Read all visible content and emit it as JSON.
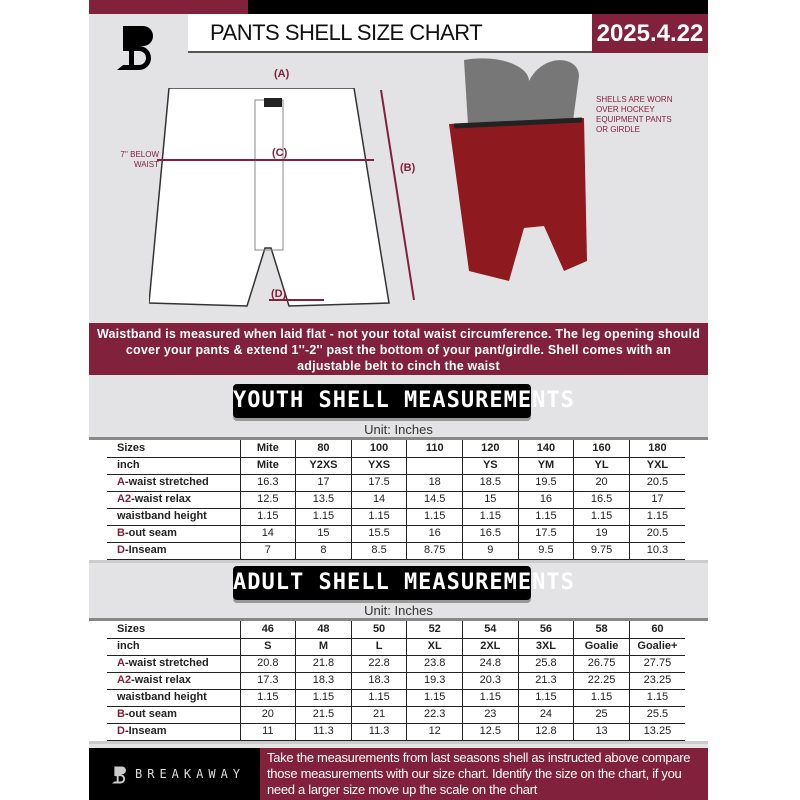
{
  "header": {
    "title": "PANTS SHELL SIZE CHART",
    "date": "2025.4.22",
    "logo": "B"
  },
  "diagram": {
    "label_a": "(A)",
    "label_b": "(B)",
    "label_c": "(C)",
    "label_d": "(D)",
    "below_waist": "7'' BELOW\nWAIST",
    "photo_note": "SHELLS ARE WORN\nOVER HOCKEY\nEQUIPMENT PANTS\nOR GIRDLE"
  },
  "banner": "Waistband is measured when laid flat - not your total waist circumference. The leg opening should cover your pants & extend 1''-2'' past the bottom of your pant/girdle. Shell comes with an adjustable belt to cinch the waist",
  "youth": {
    "title": "YOUTH SHELL MEASUREMENTS",
    "unit": "Unit: Inches",
    "rows": [
      {
        "key": "",
        "label": "Sizes",
        "values": [
          "Mite",
          "80",
          "100",
          "110",
          "120",
          "140",
          "160",
          "180"
        ]
      },
      {
        "key": "",
        "label": "inch",
        "values": [
          "Mite",
          "Y2XS",
          "YXS",
          "",
          "YS",
          "YM",
          "YL",
          "YXL"
        ]
      },
      {
        "key": "A",
        "label": "-waist stretched",
        "values": [
          "16.3",
          "17",
          "17.5",
          "18",
          "18.5",
          "19.5",
          "20",
          "20.5"
        ]
      },
      {
        "key": "A2",
        "label": "-waist relax",
        "values": [
          "12.5",
          "13.5",
          "14",
          "14.5",
          "15",
          "16",
          "16.5",
          "17"
        ]
      },
      {
        "key": "",
        "label": "waistband height",
        "values": [
          "1.15",
          "1.15",
          "1.15",
          "1.15",
          "1.15",
          "1.15",
          "1.15",
          "1.15"
        ]
      },
      {
        "key": "B",
        "label": "-out seam",
        "values": [
          "14",
          "15",
          "15.5",
          "16",
          "16.5",
          "17.5",
          "19",
          "20.5"
        ]
      },
      {
        "key": "D",
        "label": "-Inseam",
        "values": [
          "7",
          "8",
          "8.5",
          "8.75",
          "9",
          "9.5",
          "9.75",
          "10.3"
        ]
      }
    ]
  },
  "adult": {
    "title": "ADULT SHELL MEASUREMENTS",
    "unit": "Unit: Inches",
    "rows": [
      {
        "key": "",
        "label": "Sizes",
        "values": [
          "46",
          "48",
          "50",
          "52",
          "54",
          "56",
          "58",
          "60"
        ]
      },
      {
        "key": "",
        "label": "inch",
        "values": [
          "S",
          "M",
          "L",
          "XL",
          "2XL",
          "3XL",
          "Goalie",
          "Goalie+"
        ]
      },
      {
        "key": "A",
        "label": "-waist stretched",
        "values": [
          "20.8",
          "21.8",
          "22.8",
          "23.8",
          "24.8",
          "25.8",
          "26.75",
          "27.75"
        ]
      },
      {
        "key": "A2",
        "label": "-waist relax",
        "values": [
          "17.3",
          "18.3",
          "18.3",
          "19.3",
          "20.3",
          "21.3",
          "22.25",
          "23.25"
        ]
      },
      {
        "key": "",
        "label": "waistband height",
        "values": [
          "1.15",
          "1.15",
          "1.15",
          "1.15",
          "1.15",
          "1.15",
          "1.15",
          "1.15"
        ]
      },
      {
        "key": "B",
        "label": "-out seam",
        "values": [
          "20",
          "21.5",
          "21",
          "22.3",
          "23",
          "24",
          "25",
          "25.5"
        ]
      },
      {
        "key": "D",
        "label": "-Inseam",
        "values": [
          "11",
          "11.3",
          "11.3",
          "12",
          "12.5",
          "12.8",
          "13",
          "13.25"
        ]
      }
    ]
  },
  "footer": {
    "brand": "BREAKAWAY",
    "text": "Take the measurements from last seasons shell as instructed above compare those measurements  with our size chart. Identify the size on the chart, if you need a larger size move up the scale on the chart"
  },
  "colors": {
    "brand": "#82213c",
    "pants": "#8e1a1f"
  }
}
